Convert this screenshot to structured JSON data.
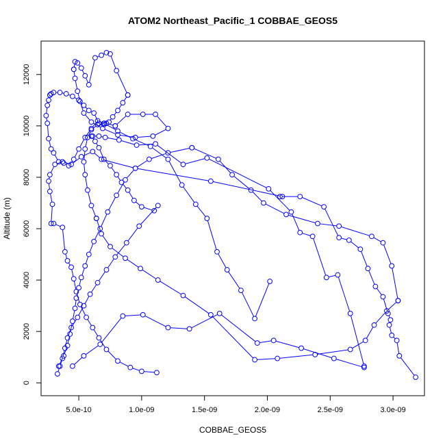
{
  "chart_data": {
    "type": "line",
    "title": "ATOM2 Northeast_Pacific_1 COBBAE_GEOS5",
    "xlabel": "COBBAE_GEOS5",
    "ylabel": "Altitude (m)",
    "xlim": [
      2e-10,
      3.25e-09
    ],
    "ylim": [
      -500,
      13300
    ],
    "x_ticks": [
      {
        "value": 5e-10,
        "label": "5.0e-10"
      },
      {
        "value": 1e-09,
        "label": "1.0e-09"
      },
      {
        "value": 1.5e-09,
        "label": "1.5e-09"
      },
      {
        "value": 2e-09,
        "label": "2.0e-09"
      },
      {
        "value": 2.5e-09,
        "label": "2.5e-09"
      },
      {
        "value": 3e-09,
        "label": "3.0e-09"
      }
    ],
    "y_ticks": [
      {
        "value": 0,
        "label": "0"
      },
      {
        "value": 2000,
        "label": "2000"
      },
      {
        "value": 4000,
        "label": "4000"
      },
      {
        "value": 6000,
        "label": "6000"
      },
      {
        "value": 8000,
        "label": "8000"
      },
      {
        "value": 10000,
        "label": "10000"
      },
      {
        "value": 12000,
        "label": "12000"
      }
    ],
    "grid": false,
    "color": "#0000ff",
    "marker": "open-circle",
    "series": [
      {
        "x": [
          3.18e-09,
          3.05e-09,
          3.03e-09,
          2.99e-09,
          2.97e-09,
          2.98e-09,
          2.96e-09,
          2.92e-09,
          2.86e-09,
          2.8e-09,
          2.74e-09,
          2.65e-09,
          2.57e-09,
          2.45e-09,
          2.26e-09,
          2.1e-09
        ],
        "y": [
          220,
          1050,
          1650,
          1850,
          2250,
          2450,
          2700,
          3350,
          3750,
          4450,
          5200,
          5550,
          5650,
          6850,
          7250,
          7250
        ]
      },
      {
        "x": [
          2.12e-09,
          1.55e-09,
          9.5e-10,
          6.8e-10,
          6.1e-10,
          5.2e-10,
          4.4e-10,
          3.7e-10,
          3.1e-10,
          2.7e-10,
          2.6e-10,
          2.7e-10,
          2.9e-10,
          2.8e-10
        ],
        "y": [
          7250,
          7850,
          8350,
          8700,
          9000,
          8800,
          8500,
          8600,
          8500,
          8100,
          7850,
          7450,
          6950,
          6200
        ]
      },
      {
        "x": [
          3e-10,
          3.7e-10,
          3.9e-10,
          4.1e-10,
          4.4e-10,
          4.6e-10,
          4.8e-10,
          5.1e-10,
          5.6e-10,
          6.1e-10,
          6.6e-10,
          7.2e-10,
          8.1e-10,
          9.1e-10,
          1e-09,
          1.12e-09
        ],
        "y": [
          6200,
          6050,
          5100,
          4750,
          4500,
          4050,
          3550,
          3050,
          2550,
          2150,
          1750,
          1300,
          850,
          600,
          450,
          400
        ]
      },
      {
        "x": [
          4.5e-10,
          5.4e-10,
          6.7e-10,
          8.5e-10,
          1.01e-09,
          1.21e-09,
          1.38e-09,
          1.62e-09,
          1.92e-09,
          2.05e-09,
          2.27e-09,
          2.53e-09,
          2.77e-09
        ],
        "y": [
          650,
          1050,
          1500,
          2600,
          2650,
          2150,
          2100,
          2700,
          1550,
          1650,
          1350,
          950,
          600
        ]
      },
      {
        "x": [
          2.77e-09,
          2.66e-09,
          2.56e-09,
          2.47e-09,
          2.36e-09,
          2.26e-09,
          2.19e-09,
          2.01e-09,
          1.52e-09,
          1.33e-09,
          1.11e-09,
          9.6e-10,
          8.2e-10,
          7.1e-10,
          6.6e-10,
          6.1e-10
        ],
        "y": [
          650,
          2700,
          4200,
          4100,
          5700,
          5850,
          6650,
          7550,
          8750,
          8500,
          9300,
          9250,
          9450,
          9550,
          9600,
          9600
        ]
      },
      {
        "x": [
          6e-10,
          6.3e-10,
          6.6e-10,
          7e-10,
          7.5e-10,
          8e-10,
          8.4e-10,
          8.9e-10,
          9.4e-10,
          1e-09,
          1.1e-09
        ],
        "y": [
          9600,
          9400,
          9150,
          8700,
          8450,
          8100,
          7800,
          7500,
          7100,
          6850,
          6700
        ]
      },
      {
        "x": [
          1.13e-09,
          9.8e-10,
          8.8e-10,
          7.9e-10,
          7.2e-10,
          6.5e-10,
          5.9e-10,
          5.4e-10,
          4.9e-10,
          4.4e-10,
          4.1e-10,
          3.9e-10,
          3.7e-10,
          3.5e-10,
          3.3e-10
        ],
        "y": [
          6900,
          6100,
          5450,
          4900,
          4400,
          3900,
          3450,
          3000,
          2550,
          2150,
          1750,
          1350,
          950,
          650,
          350
        ]
      },
      {
        "x": [
          3.4e-10,
          3.8e-10,
          4.1e-10,
          4.3e-10,
          4.5e-10,
          4.7e-10,
          4.8e-10,
          5e-10,
          5.2e-10,
          5.5e-10,
          5.8e-10,
          6.2e-10,
          6.7e-10,
          7.3e-10,
          8e-10,
          8.7e-10,
          9.5e-10,
          1.06e-09,
          1.21e-09,
          1.4e-09
        ],
        "y": [
          650,
          1050,
          1450,
          1900,
          2400,
          2900,
          3300,
          3700,
          4100,
          4550,
          5000,
          5500,
          6000,
          6650,
          7300,
          7900,
          8350,
          8700,
          8950,
          9150
        ]
      },
      {
        "x": [
          1.4e-09,
          1.61e-09,
          1.72e-09,
          1.87e-09,
          1.97e-09,
          2.15e-09,
          2.4e-09,
          2.57e-09,
          2.83e-09,
          2.92e-09,
          2.99e-09,
          3.04e-09
        ],
        "y": [
          9150,
          8700,
          8100,
          7500,
          7000,
          6550,
          6200,
          6100,
          5700,
          5450,
          4550,
          3200
        ]
      },
      {
        "x": [
          3.04e-09,
          2.95e-09,
          2.85e-09,
          2.78e-09,
          2.66e-09,
          2.38e-09,
          2.08e-09,
          1.9e-09,
          1.55e-09,
          1.33e-09,
          1.13e-09,
          9.9e-10,
          8.7e-10,
          7.5e-10,
          6.8e-10,
          6.4e-10
        ],
        "y": [
          3200,
          2800,
          2250,
          1650,
          1300,
          1100,
          950,
          900,
          2650,
          3400,
          4000,
          4450,
          4850,
          5300,
          5800,
          6400
        ]
      },
      {
        "x": [
          6.4e-10,
          6e-10,
          5.7e-10,
          5.5e-10,
          5.4e-10,
          5.5e-10,
          5.7e-10,
          6e-10,
          6.5e-10,
          7.2e-10,
          7.9e-10
        ],
        "y": [
          6400,
          6900,
          7500,
          8100,
          8600,
          9100,
          9550,
          9850,
          10050,
          10100,
          10000
        ]
      },
      {
        "x": [
          7.9e-10,
          8.9e-10,
          1.01e-09,
          1.11e-09,
          1.21e-09,
          1.09e-09,
          9.5e-10,
          8.1e-10,
          6.9e-10,
          6e-10,
          5.4e-10,
          5.1e-10,
          4.9e-10,
          4.7e-10,
          4.6e-10
        ],
        "y": [
          10000,
          10450,
          10450,
          10450,
          9900,
          9600,
          9550,
          9650,
          9900,
          10150,
          10500,
          10950,
          11350,
          11850,
          12200
        ]
      },
      {
        "x": [
          4.6e-10,
          4.7e-10,
          4.9e-10,
          5.2e-10,
          5.5e-10,
          5.8e-10,
          6.3e-10,
          6.8e-10,
          7.2e-10,
          7.5e-10,
          8e-10,
          8.9e-10
        ],
        "y": [
          12200,
          12500,
          12450,
          12250,
          11950,
          11600,
          12650,
          12750,
          12850,
          12800,
          12150,
          11200
        ]
      },
      {
        "x": [
          8.9e-10,
          8.5e-10,
          8.1e-10,
          7.7e-10,
          7.4e-10,
          7e-10,
          6.6e-10,
          6.2e-10,
          5.8e-10,
          5.4e-10,
          5e-10,
          4.5e-10,
          4e-10,
          3.5e-10,
          3e-10,
          2.8e-10,
          2.7e-10
        ],
        "y": [
          11200,
          10900,
          10600,
          10350,
          10150,
          10050,
          10100,
          10500,
          10600,
          10800,
          11000,
          11150,
          11250,
          11300,
          11300,
          11250,
          11200
        ]
      },
      {
        "x": [
          2.7e-10,
          2.6e-10,
          2.5e-10,
          2.4e-10,
          2.5e-10,
          2.6e-10,
          2.8e-10,
          3e-10,
          3.4e-10,
          3.8e-10,
          4.2e-10,
          4.6e-10,
          5e-10,
          5.5e-10,
          6e-10,
          6.5e-10,
          7e-10
        ],
        "y": [
          11200,
          11000,
          10800,
          10400,
          10100,
          9500,
          9100,
          8950,
          8600,
          8550,
          8450,
          8700,
          9100,
          9550,
          9900,
          10200,
          10100
        ]
      },
      {
        "x": [
          7e-10,
          8.1e-10,
          9.3e-10,
          1.07e-09,
          1.21e-09,
          1.32e-09,
          1.43e-09,
          1.52e-09,
          1.6e-09,
          1.68e-09,
          1.79e-09,
          1.9e-09,
          2.02e-09
        ],
        "y": [
          10100,
          9800,
          9500,
          9200,
          8700,
          7700,
          6950,
          6400,
          5100,
          4400,
          3600,
          2500,
          3950
        ]
      }
    ]
  }
}
